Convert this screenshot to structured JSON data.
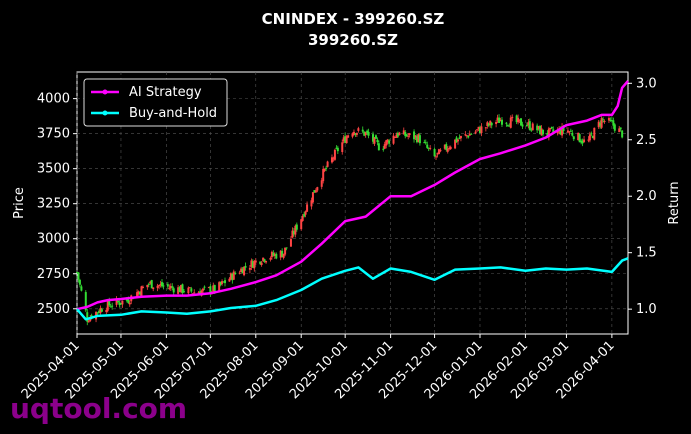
{
  "chart_data": {
    "type": "line",
    "title": "CNINDEX - 399260.SZ",
    "subtitle": "399260.SZ",
    "ylabel_left": "Price",
    "ylabel_right": "Return",
    "xlabel": "",
    "x_ticks": [
      "2025-04-01",
      "2025-05-01",
      "2025-06-01",
      "2025-07-01",
      "2025-08-01",
      "2025-09-01",
      "2025-10-01",
      "2025-11-01",
      "2025-12-01",
      "2026-01-01",
      "2026-02-01",
      "2026-03-01",
      "2026-04-01"
    ],
    "xlim": [
      "2025-04-01",
      "2026-04-12"
    ],
    "y_left_ticks": [
      2500,
      2750,
      3000,
      3250,
      3500,
      3750,
      4000
    ],
    "ylim_left": [
      2320,
      4190
    ],
    "y_right_ticks": [
      1.0,
      1.5,
      2.0,
      2.5,
      3.0
    ],
    "ylim_right": [
      0.78,
      3.1
    ],
    "grid": true,
    "legend_position": "top-left",
    "series": [
      {
        "name": "AI Strategy",
        "axis": "right",
        "color": "#ff00ff",
        "points": [
          [
            "2025-04-01",
            1.0
          ],
          [
            "2025-04-08",
            1.02
          ],
          [
            "2025-04-15",
            1.06
          ],
          [
            "2025-04-22",
            1.08
          ],
          [
            "2025-05-01",
            1.09
          ],
          [
            "2025-05-15",
            1.11
          ],
          [
            "2025-06-01",
            1.12
          ],
          [
            "2025-06-15",
            1.12
          ],
          [
            "2025-07-01",
            1.14
          ],
          [
            "2025-07-15",
            1.18
          ],
          [
            "2025-08-01",
            1.24
          ],
          [
            "2025-08-15",
            1.3
          ],
          [
            "2025-09-01",
            1.42
          ],
          [
            "2025-09-15",
            1.58
          ],
          [
            "2025-10-01",
            1.78
          ],
          [
            "2025-10-15",
            1.82
          ],
          [
            "2025-11-01",
            2.0
          ],
          [
            "2025-11-15",
            2.0
          ],
          [
            "2025-12-01",
            2.1
          ],
          [
            "2025-12-15",
            2.21
          ],
          [
            "2026-01-01",
            2.33
          ],
          [
            "2026-01-15",
            2.38
          ],
          [
            "2026-02-01",
            2.45
          ],
          [
            "2026-02-15",
            2.52
          ],
          [
            "2026-03-01",
            2.63
          ],
          [
            "2026-03-15",
            2.67
          ],
          [
            "2026-03-25",
            2.72
          ],
          [
            "2026-04-01",
            2.72
          ],
          [
            "2026-04-05",
            2.8
          ],
          [
            "2026-04-08",
            2.96
          ],
          [
            "2026-04-12",
            3.02
          ]
        ]
      },
      {
        "name": "Buy-and-Hold",
        "axis": "right",
        "color": "#00ffff",
        "points": [
          [
            "2025-04-01",
            1.0
          ],
          [
            "2025-04-07",
            0.91
          ],
          [
            "2025-04-15",
            0.94
          ],
          [
            "2025-05-01",
            0.95
          ],
          [
            "2025-05-15",
            0.98
          ],
          [
            "2025-06-01",
            0.97
          ],
          [
            "2025-06-15",
            0.96
          ],
          [
            "2025-07-01",
            0.98
          ],
          [
            "2025-07-15",
            1.01
          ],
          [
            "2025-08-01",
            1.03
          ],
          [
            "2025-08-15",
            1.08
          ],
          [
            "2025-09-01",
            1.17
          ],
          [
            "2025-09-15",
            1.27
          ],
          [
            "2025-10-01",
            1.34
          ],
          [
            "2025-10-10",
            1.37
          ],
          [
            "2025-10-20",
            1.27
          ],
          [
            "2025-11-01",
            1.36
          ],
          [
            "2025-11-15",
            1.33
          ],
          [
            "2025-12-01",
            1.26
          ],
          [
            "2025-12-15",
            1.35
          ],
          [
            "2026-01-01",
            1.36
          ],
          [
            "2026-01-15",
            1.37
          ],
          [
            "2026-02-01",
            1.34
          ],
          [
            "2026-02-15",
            1.36
          ],
          [
            "2026-03-01",
            1.35
          ],
          [
            "2026-03-15",
            1.36
          ],
          [
            "2026-04-01",
            1.33
          ],
          [
            "2026-04-08",
            1.43
          ],
          [
            "2026-04-12",
            1.45
          ]
        ]
      }
    ],
    "candles_approx_close": [
      [
        "2025-04-01",
        2760
      ],
      [
        "2025-04-08",
        2430
      ],
      [
        "2025-04-20",
        2520
      ],
      [
        "2025-05-05",
        2560
      ],
      [
        "2025-05-20",
        2680
      ],
      [
        "2025-06-05",
        2650
      ],
      [
        "2025-06-20",
        2620
      ],
      [
        "2025-07-05",
        2640
      ],
      [
        "2025-07-20",
        2770
      ],
      [
        "2025-08-05",
        2860
      ],
      [
        "2025-08-20",
        2900
      ],
      [
        "2025-09-01",
        3150
      ],
      [
        "2025-09-15",
        3450
      ],
      [
        "2025-09-25",
        3620
      ],
      [
        "2025-10-05",
        3780
      ],
      [
        "2025-10-15",
        3750
      ],
      [
        "2025-10-25",
        3650
      ],
      [
        "2025-11-05",
        3750
      ],
      [
        "2025-11-20",
        3720
      ],
      [
        "2025-12-01",
        3580
      ],
      [
        "2025-12-15",
        3700
      ],
      [
        "2026-01-01",
        3780
      ],
      [
        "2026-01-15",
        3850
      ],
      [
        "2026-02-01",
        3820
      ],
      [
        "2026-02-15",
        3750
      ],
      [
        "2026-03-01",
        3780
      ],
      [
        "2026-03-15",
        3680
      ],
      [
        "2026-03-25",
        3850
      ],
      [
        "2026-04-01",
        3820
      ],
      [
        "2026-04-08",
        3750
      ]
    ]
  },
  "watermark": "uqtool.com"
}
